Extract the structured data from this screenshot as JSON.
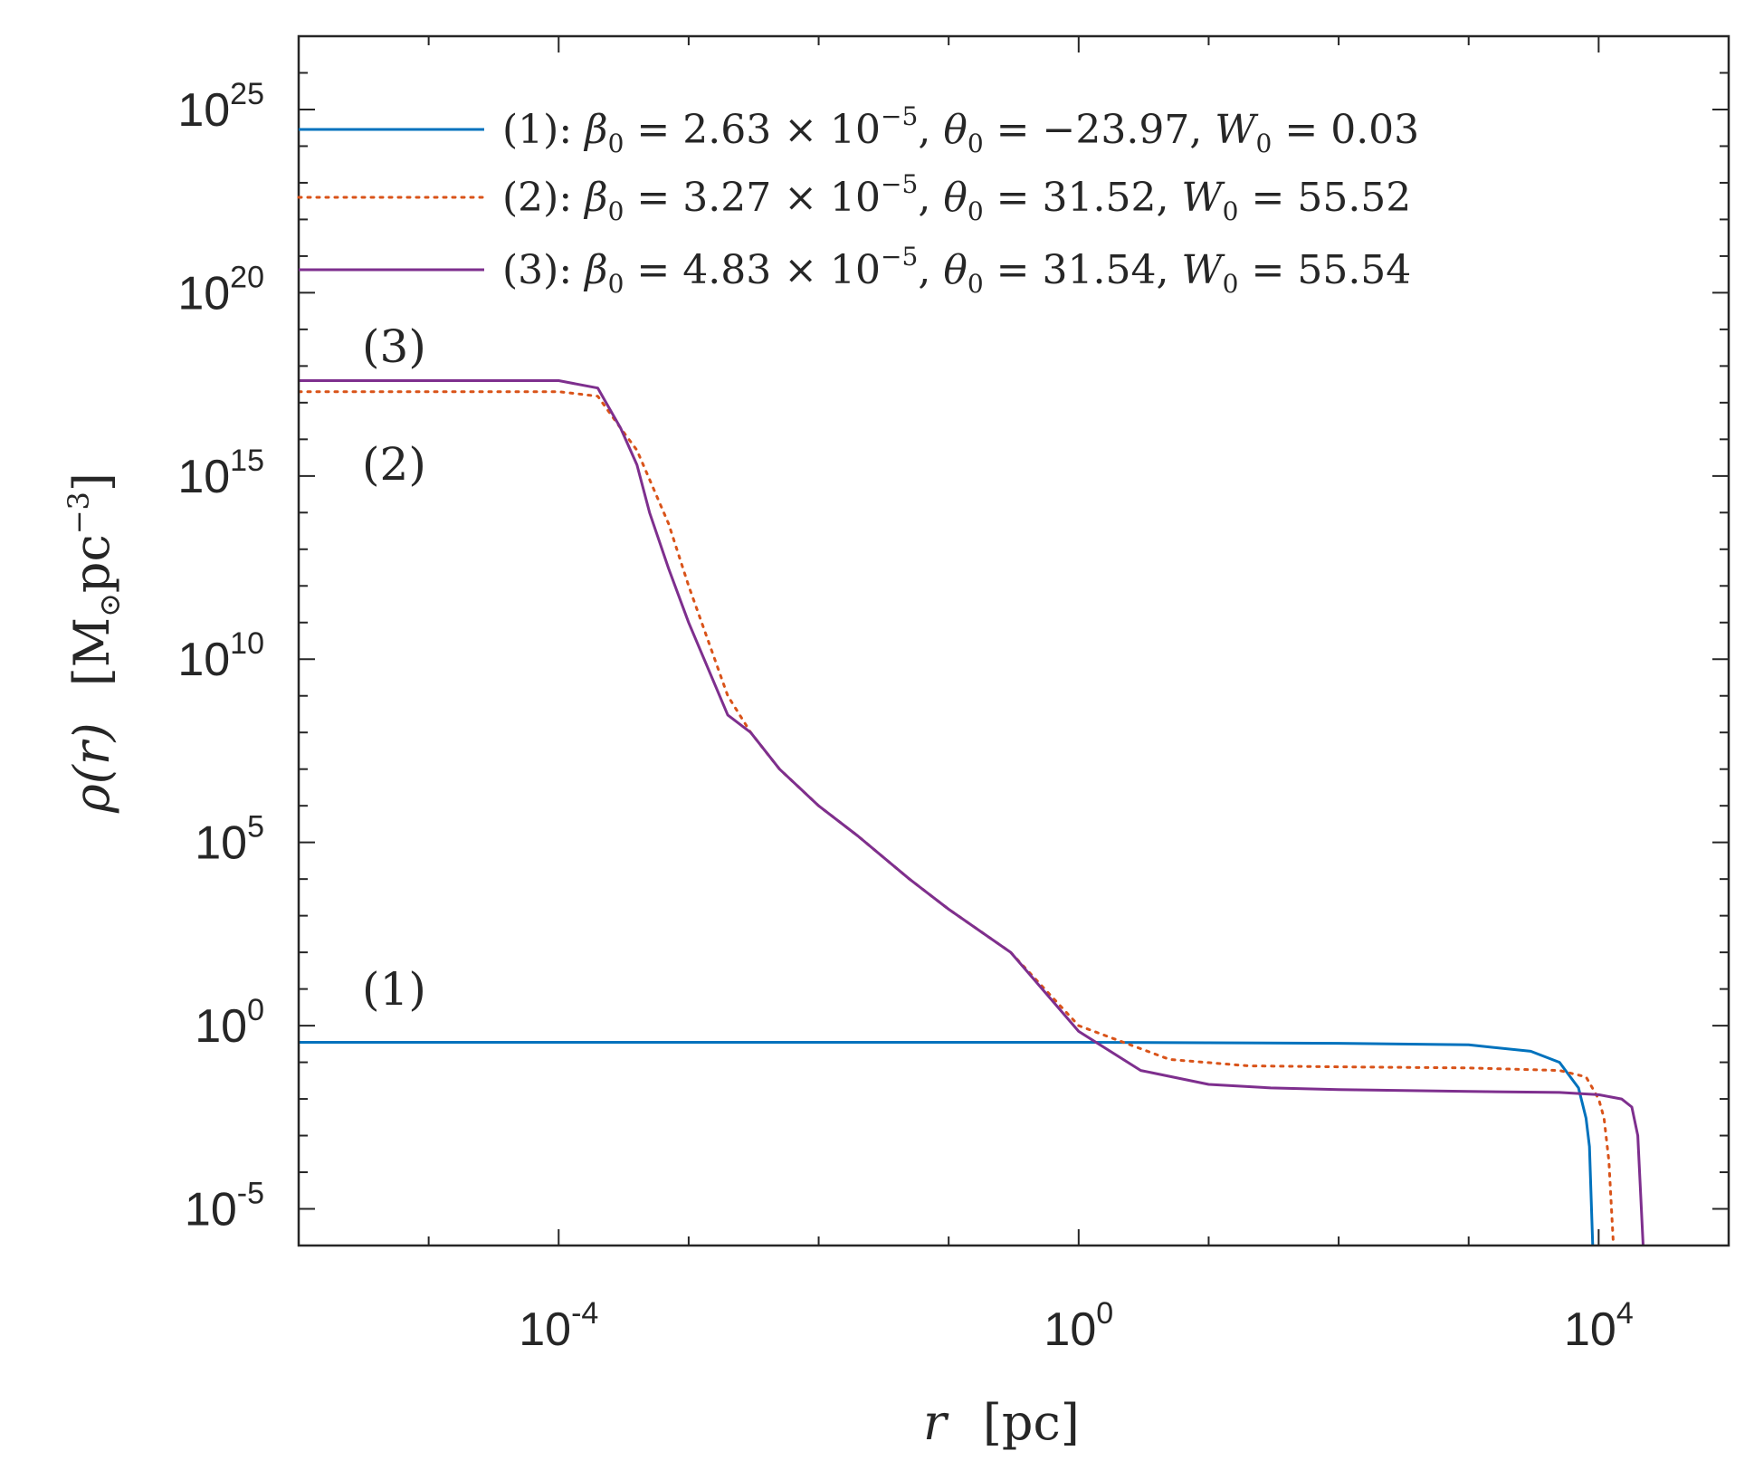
{
  "chart_data": {
    "type": "line",
    "xscale": "log",
    "yscale": "log",
    "xlim": [
      1e-06,
      100000.0
    ],
    "ylim": [
      1e-06,
      1e+27
    ],
    "xticks": [
      {
        "base": "10",
        "exp": "-4",
        "value": 0.0001
      },
      {
        "base": "10",
        "exp": "0",
        "value": 1
      },
      {
        "base": "10",
        "exp": "4",
        "value": 10000.0
      }
    ],
    "yticks": [
      {
        "base": "10",
        "exp": "-5",
        "value": 1e-05
      },
      {
        "base": "10",
        "exp": "0",
        "value": 1
      },
      {
        "base": "10",
        "exp": "5",
        "value": 100000.0
      },
      {
        "base": "10",
        "exp": "10",
        "value": 10000000000.0
      },
      {
        "base": "10",
        "exp": "15",
        "value": 1000000000000000.0
      },
      {
        "base": "10",
        "exp": "20",
        "value": 1e+20
      },
      {
        "base": "10",
        "exp": "25",
        "value": 1e+25
      }
    ],
    "xlabel": {
      "var": "r",
      "unit": "[pc]"
    },
    "ylabel": {
      "var": "ρ(r)",
      "unit_open": "[M",
      "unit_sub": "⊙",
      "unit_rest": "pc",
      "unit_sup": "−3",
      "unit_close": "]"
    },
    "grid": false,
    "legend_position": "top-right",
    "series": [
      {
        "name": "(1): β0 = 2.63 × 10^−5, θ0 = −23.97, W0 = 0.03",
        "legend": {
          "num": "(1):",
          "beta": "2.63 × 10",
          "beta_exp": "−5",
          "theta": "−23.97",
          "w": "0.03"
        },
        "tag": "(1)",
        "color": "#0072BD",
        "style": "solid",
        "x": [
          1e-06,
          1,
          100,
          1000,
          3000,
          5000,
          7000,
          8000,
          8500,
          9000
        ],
        "y": [
          0.35,
          0.35,
          0.33,
          0.3,
          0.2,
          0.1,
          0.02,
          0.003,
          0.0005,
          1e-06
        ]
      },
      {
        "name": "(2): β0 = 3.27 × 10^−5, θ0 = 31.52, W0 = 55.52",
        "legend": {
          "num": "(2):",
          "beta": "3.27 × 10",
          "beta_exp": "−5",
          "theta": "31.52",
          "w": "55.52"
        },
        "tag": "(2)",
        "color": "#D95319",
        "style": "dotted",
        "x": [
          1e-06,
          0.0001,
          0.0002,
          0.0003,
          0.0004,
          0.0005,
          0.0007,
          0.001,
          0.002,
          0.003,
          0.005,
          0.01,
          0.02,
          0.05,
          0.1,
          0.3,
          1,
          2,
          5,
          20,
          100,
          1000,
          5000,
          8000,
          10000,
          11000,
          12000,
          13000
        ],
        "y": [
          2e+17,
          2e+17,
          1.5e+17,
          2e+16,
          5000000000000000.0,
          800000000000000.0,
          50000000000000.0,
          1000000000000.0,
          1000000000.0,
          100000000.0,
          10000000.0,
          1000000.0,
          150000.0,
          10000.0,
          1500,
          100,
          1,
          0.4,
          0.12,
          0.08,
          0.075,
          0.07,
          0.06,
          0.04,
          0.01,
          0.003,
          0.0002,
          1e-06
        ]
      },
      {
        "name": "(3): β0 = 4.83 × 10^−5, θ0 = 31.54, W0 = 55.54",
        "legend": {
          "num": "(3):",
          "beta": "4.83 × 10",
          "beta_exp": "−5",
          "theta": "31.54",
          "w": "55.54"
        },
        "tag": "(3)",
        "color": "#7E2F8E",
        "style": "solid",
        "x": [
          1e-06,
          0.0001,
          0.0002,
          0.0003,
          0.0004,
          0.0005,
          0.0007,
          0.001,
          0.002,
          0.003,
          0.005,
          0.01,
          0.02,
          0.05,
          0.1,
          0.3,
          1,
          3,
          10,
          30,
          100,
          1000,
          5000,
          10000,
          15000,
          18000,
          20000,
          21000,
          22000
        ],
        "y": [
          4e+17,
          4e+17,
          2.5e+17,
          2e+16,
          2000000000000000.0,
          100000000000000.0,
          3000000000000.0,
          100000000000.0,
          300000000.0,
          100000000.0,
          10000000.0,
          1000000.0,
          150000.0,
          10000.0,
          1500,
          100,
          0.7,
          0.06,
          0.025,
          0.02,
          0.018,
          0.016,
          0.015,
          0.013,
          0.01,
          0.006,
          0.001,
          3e-05,
          1e-06
        ]
      }
    ]
  }
}
